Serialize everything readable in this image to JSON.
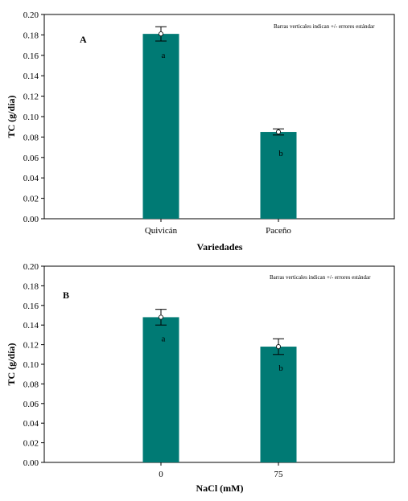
{
  "chart_data": [
    {
      "type": "bar",
      "panel_label": "A",
      "note": "Barras verticales indican +/- errores estándar",
      "categories": [
        "Quivicán",
        "Paceño"
      ],
      "values": [
        0.181,
        0.085
      ],
      "errors": [
        0.007,
        0.003
      ],
      "significance": [
        "a",
        "b"
      ],
      "xlabel": "Variedades",
      "ylabel": "TC (g/día)",
      "ylim": [
        0,
        0.2
      ],
      "yticks": [
        "0.00",
        "0.02",
        "0.04",
        "0.06",
        "0.08",
        "0.10",
        "0.12",
        "0.14",
        "0.16",
        "0.18",
        "0.20"
      ],
      "bar_color": "#007a74",
      "grid": false
    },
    {
      "type": "bar",
      "panel_label": "B",
      "note": "Barras verticales indican +/- errores estándar",
      "categories": [
        "0",
        "75"
      ],
      "values": [
        0.148,
        0.118
      ],
      "errors": [
        0.008,
        0.008
      ],
      "significance": [
        "a",
        "b"
      ],
      "xlabel": "NaCl (mM)",
      "ylabel": "TC (g/día)",
      "ylim": [
        0,
        0.2
      ],
      "yticks": [
        "0.00",
        "0.02",
        "0.04",
        "0.06",
        "0.08",
        "0.10",
        "0.12",
        "0.14",
        "0.16",
        "0.18",
        "0.20"
      ],
      "bar_color": "#007a74",
      "grid": false
    }
  ]
}
